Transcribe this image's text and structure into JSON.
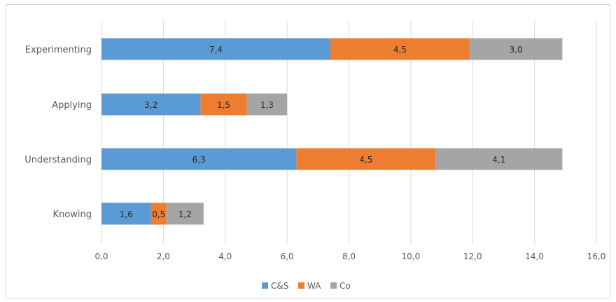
{
  "chart_data": {
    "type": "bar",
    "orientation": "horizontal",
    "stacked": true,
    "categories": [
      "Experimenting",
      "Applying",
      "Understanding",
      "Knowing"
    ],
    "series": [
      {
        "name": "C&S",
        "values": [
          7.4,
          3.2,
          6.3,
          1.6
        ],
        "labels": [
          "7,4",
          "3,2",
          "6,3",
          "1,6"
        ],
        "color": "#5b9bd5"
      },
      {
        "name": "WA",
        "values": [
          4.5,
          1.5,
          4.5,
          0.5
        ],
        "labels": [
          "4,5",
          "1,5",
          "4,5",
          "0,5"
        ],
        "color": "#ed7d31"
      },
      {
        "name": "Co",
        "values": [
          3.0,
          1.3,
          4.1,
          1.2
        ],
        "labels": [
          "3,0",
          "1,3",
          "4,1",
          "1,2"
        ],
        "color": "#a5a5a5"
      }
    ],
    "xlim": [
      0,
      16
    ],
    "xticks": [
      0,
      2,
      4,
      6,
      8,
      10,
      12,
      14,
      16
    ],
    "xtick_labels": [
      "0,0",
      "2,0",
      "4,0",
      "6,0",
      "8,0",
      "10,0",
      "12,0",
      "14,0",
      "16,0"
    ],
    "grid": "vertical",
    "legend": "bottom",
    "title": "",
    "xlabel": "",
    "ylabel": ""
  }
}
